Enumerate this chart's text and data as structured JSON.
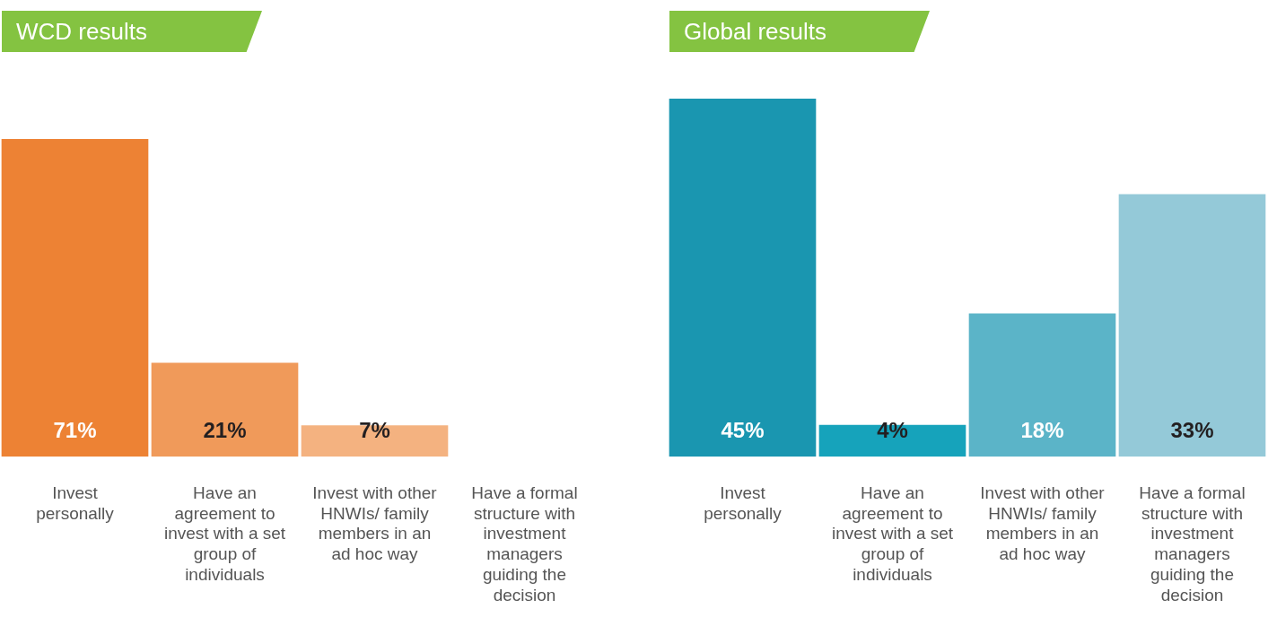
{
  "chart_data": [
    {
      "type": "bar",
      "title": "WCD results",
      "categories": [
        "Invest personally",
        "Have an agreement to invest with a set group of individuals",
        "Invest with other HNWIs/ family members in an ad hoc way",
        "Have a formal structure with investment managers guiding the decision"
      ],
      "values": [
        71,
        21,
        7,
        null
      ],
      "colors": [
        "#ed8234",
        "#f09a5a",
        "#f4b280",
        "#f7c8a4"
      ],
      "value_labels": [
        "71%",
        "21%",
        "7%",
        null
      ],
      "legend": false,
      "grid": false
    },
    {
      "type": "bar",
      "title": "Global results",
      "categories": [
        "Invest personally",
        "Have an agreement to invest with a set group of individuals",
        "Invest with other HNWIs/ family members in an ad hoc way",
        "Have a formal structure with investment managers guiding the decision"
      ],
      "values": [
        45,
        4,
        18,
        33
      ],
      "colors": [
        "#1a96b0",
        "#16a3bb",
        "#5bb4c8",
        "#94c9d8"
      ],
      "value_labels": [
        "45%",
        "4%",
        "18%",
        "33%"
      ],
      "legend": false,
      "grid": false
    }
  ]
}
